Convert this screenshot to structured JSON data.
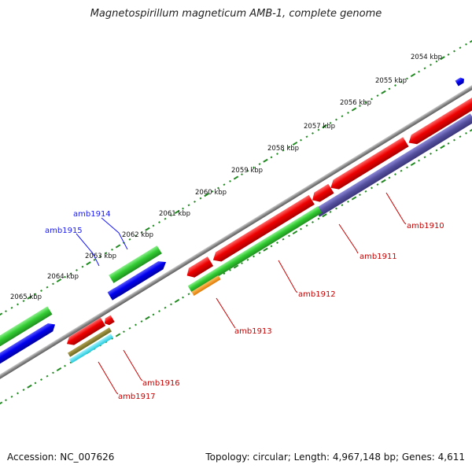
{
  "title": "Magnetospirillum magneticum AMB-1, complete genome",
  "footer": {
    "accession": "Accession: NC_007626",
    "topology": "Topology: circular; Length: 4,967,148 bp; Genes: 4,611"
  },
  "colors": {
    "background": "#ffffff",
    "backbone": "#888888",
    "tick": "#1f8a1f",
    "label_forward": "#1a1aff",
    "label_reverse": "#cc0000"
  },
  "scale_labels": [
    "2054 kbp",
    "2055 kbp",
    "2056 kbp",
    "2057 kbp",
    "2058 kbp",
    "2059 kbp",
    "2060 kbp",
    "2061 kbp",
    "2062 kbp",
    "2063 kbp",
    "2064 kbp",
    "2065 kbp"
  ],
  "genes": [
    {
      "name": "amb1910",
      "color": "#cc0000"
    },
    {
      "name": "amb1911",
      "color": "#cc0000"
    },
    {
      "name": "amb1912",
      "color": "#cc0000"
    },
    {
      "name": "amb1913",
      "color": "#cc0000"
    },
    {
      "name": "amb1914",
      "color": "#1a1aff"
    },
    {
      "name": "amb1915",
      "color": "#1a1aff"
    },
    {
      "name": "amb1916",
      "color": "#cc0000"
    },
    {
      "name": "amb1917",
      "color": "#cc0000"
    }
  ]
}
